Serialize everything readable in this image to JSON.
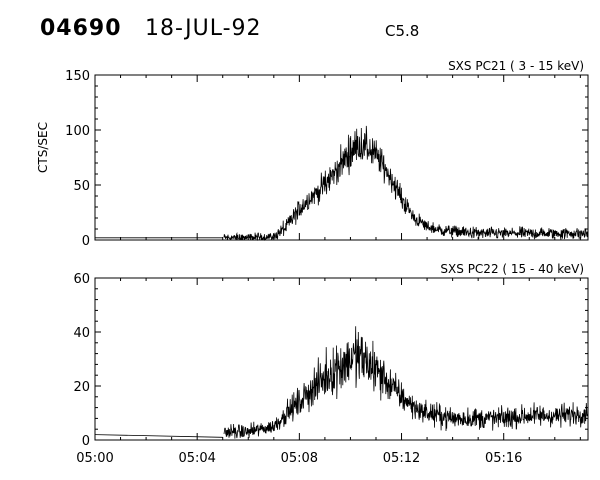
{
  "header": {
    "event_id": "04690",
    "date": "18-JUL-92",
    "flare_class": "C5.8"
  },
  "chart_data": [
    {
      "type": "line",
      "title": "SXS PC21  (  3 - 15 keV)",
      "ylabel": "CTS/SEC",
      "xlabel": "",
      "xlim": [
        "05:00",
        "05:19.3"
      ],
      "ylim": [
        0,
        150
      ],
      "y_ticks": [
        0,
        50,
        100,
        150
      ],
      "x_ticks": [
        "05:00",
        "05:04",
        "05:08",
        "05:12",
        "05:16"
      ],
      "grid": false,
      "series": [
        {
          "style": "noisy",
          "x": [
            "05:00.0",
            "05:05.0",
            "05:05.05",
            "05:06.0",
            "05:07.0",
            "05:07.5",
            "05:08.0",
            "05:08.5",
            "05:09.0",
            "05:09.5",
            "05:10.0",
            "05:10.3",
            "05:10.6",
            "05:11.0",
            "05:11.5",
            "05:12.0",
            "05:12.5",
            "05:13.0",
            "05:13.5",
            "05:14.0",
            "05:15.0",
            "05:16.0",
            "05:17.0",
            "05:18.0",
            "05:19.3"
          ],
          "values": [
            2,
            2,
            2,
            2,
            3,
            12,
            28,
            40,
            50,
            65,
            80,
            87,
            85,
            77,
            60,
            38,
            20,
            12,
            9,
            8,
            6,
            6,
            6,
            6,
            6
          ],
          "noise": [
            0,
            0,
            3,
            3,
            3,
            6,
            7,
            8,
            9,
            10,
            12,
            12,
            12,
            11,
            9,
            7,
            5,
            4,
            4,
            4,
            4,
            4,
            4,
            4,
            4
          ]
        }
      ]
    },
    {
      "type": "line",
      "title": "SXS PC22  ( 15 - 40 keV)",
      "ylabel": "",
      "xlabel": "",
      "xlim": [
        "05:00",
        "05:19.3"
      ],
      "ylim": [
        0,
        60
      ],
      "y_ticks": [
        0,
        20,
        40,
        60
      ],
      "x_ticks": [
        "05:00",
        "05:04",
        "05:08",
        "05:12",
        "05:16"
      ],
      "grid": false,
      "series": [
        {
          "style": "noisy",
          "x": [
            "05:00.0",
            "05:05.0",
            "05:05.05",
            "05:06.0",
            "05:06.5",
            "05:07.0",
            "05:07.5",
            "05:08.0",
            "05:08.5",
            "05:09.0",
            "05:09.5",
            "05:10.0",
            "05:10.3",
            "05:11.0",
            "05:11.5",
            "05:12.0",
            "05:12.5",
            "05:13.0",
            "05:14.0",
            "05:15.0",
            "05:16.0",
            "05:17.0",
            "05:18.0",
            "05:19.3"
          ],
          "values": [
            2,
            1,
            3,
            3,
            4,
            5,
            10,
            14,
            19,
            23,
            27,
            30,
            31,
            26,
            21,
            16,
            12,
            10,
            8,
            8,
            8,
            9,
            9,
            10
          ],
          "noise": [
            0,
            0,
            2,
            2,
            2,
            2,
            3,
            4,
            5,
            6,
            7,
            8,
            8,
            7,
            5,
            4,
            3,
            3,
            3,
            3,
            3,
            3,
            3,
            3
          ]
        }
      ]
    }
  ]
}
